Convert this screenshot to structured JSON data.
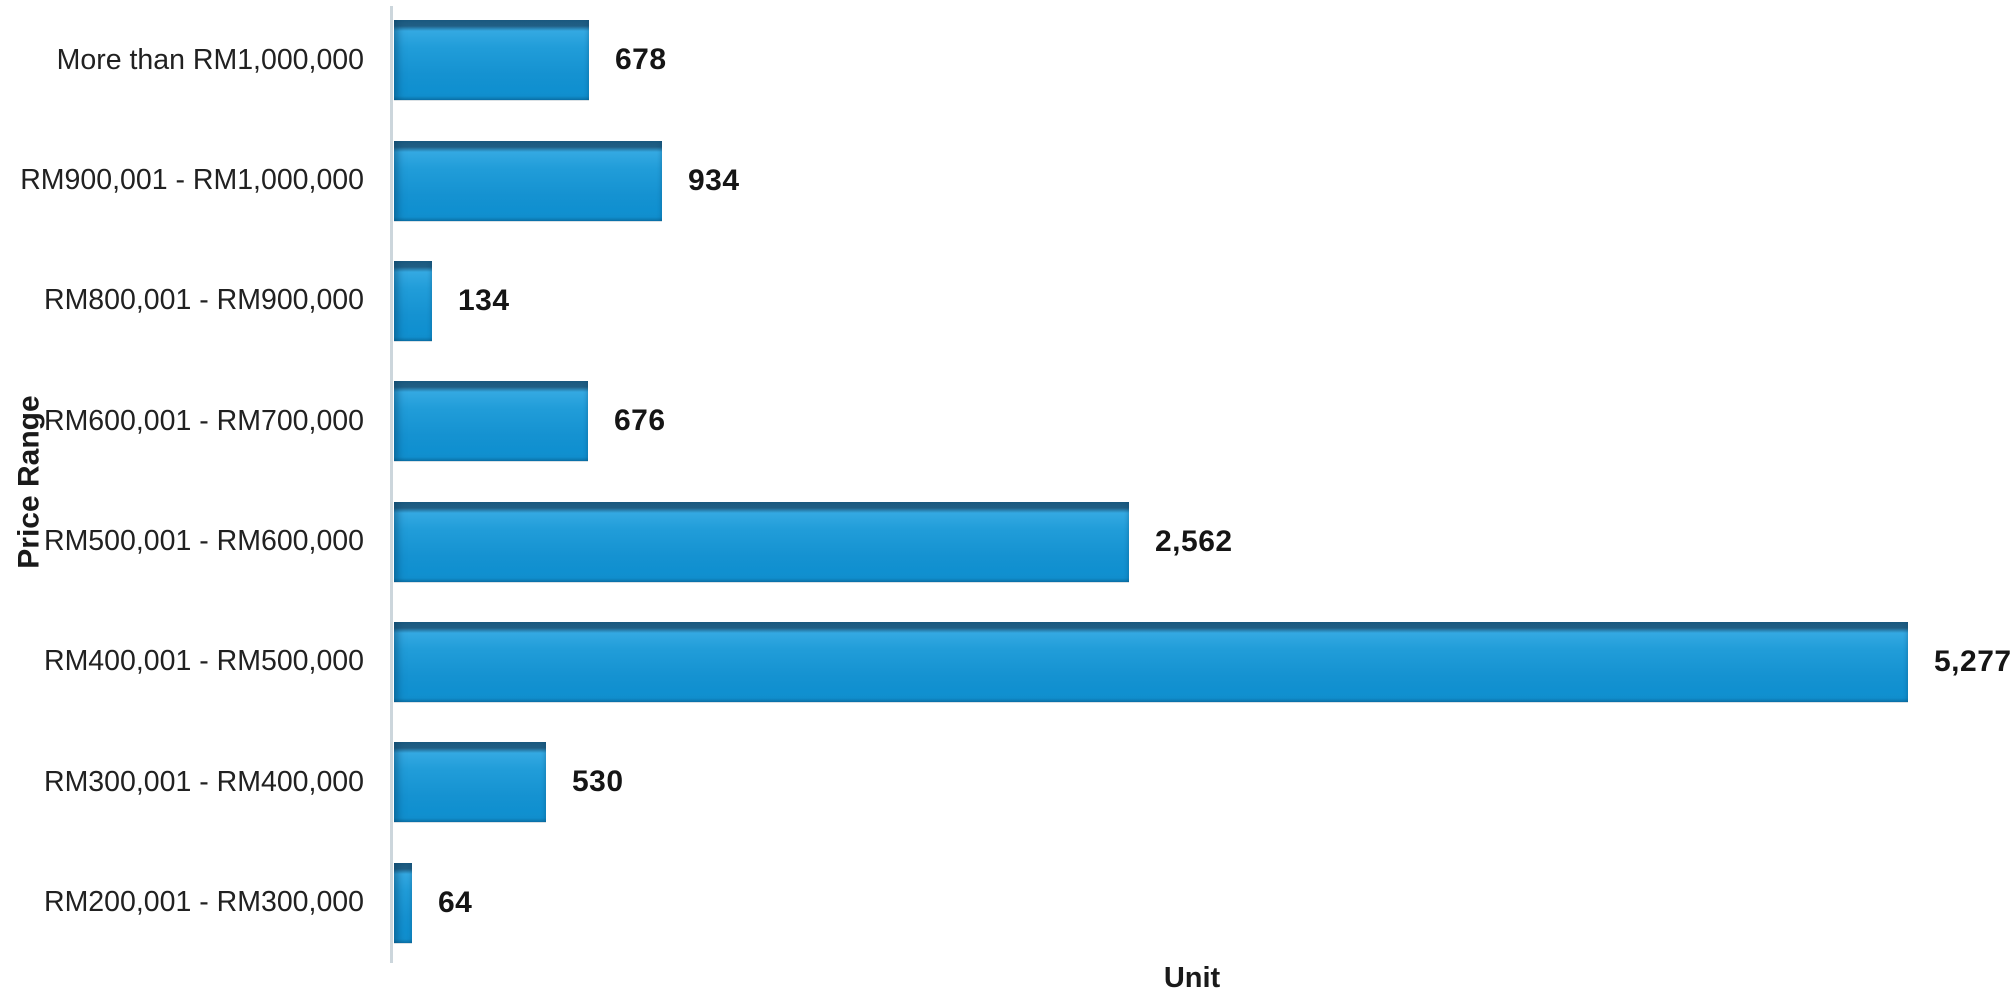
{
  "chart_data": {
    "type": "bar",
    "orientation": "horizontal",
    "title": "",
    "xlabel": "Unit",
    "ylabel": "Price Range",
    "categories": [
      "More than RM1,000,000",
      "RM900,001 - RM1,000,000",
      "RM800,001 - RM900,000",
      "RM600,001 - RM700,000",
      "RM500,001 - RM600,000",
      "RM400,001 - RM500,000",
      "RM300,001 - RM400,000",
      "RM200,001 - RM300,000"
    ],
    "values": [
      678,
      934,
      134,
      676,
      2562,
      5277,
      530,
      64
    ],
    "value_labels": [
      "678",
      "934",
      "134",
      "676",
      "2,562",
      "5,277",
      "530",
      "64"
    ],
    "xlim": [
      0,
      5600
    ],
    "grid": false,
    "legend": false,
    "data_label_position": "outside-end",
    "bar_color": "#1b98d5",
    "bar_edge_color": "#1d5c82",
    "axis_line_color": "#ccd6dc",
    "text_color": "#1a1a1a"
  }
}
